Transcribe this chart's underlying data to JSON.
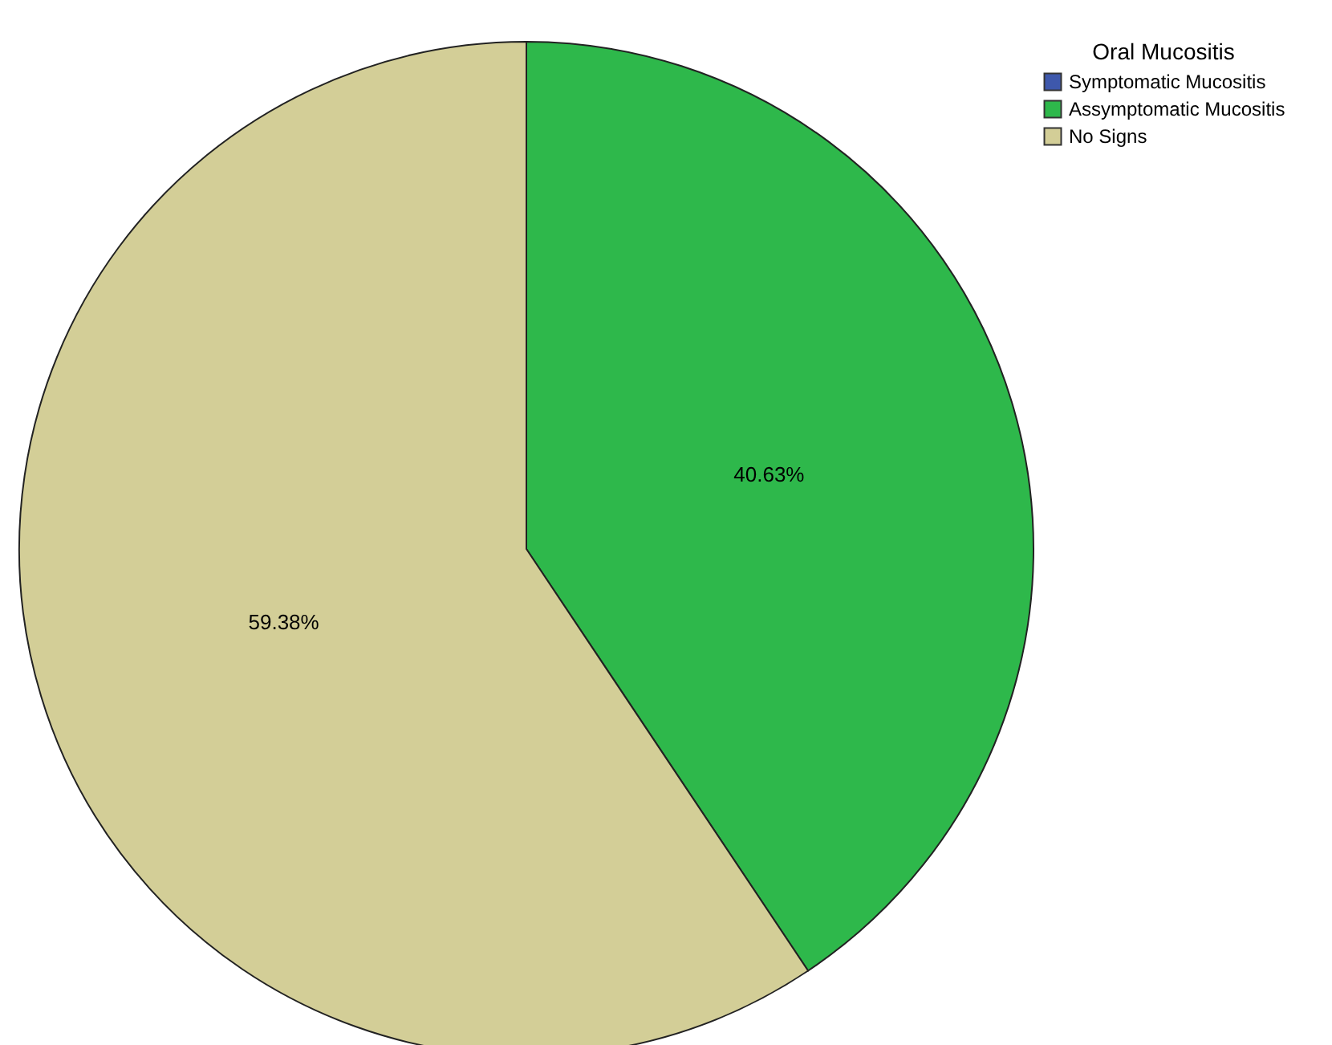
{
  "chart_data": {
    "type": "pie",
    "legend_title": "Oral Mucositis",
    "categories": [
      "Symptomatic Mucositis",
      "Assymptomatic Mucositis",
      "No Signs"
    ],
    "values": [
      0,
      40.63,
      59.38
    ],
    "colors": [
      "#3e58ac",
      "#2eb84b",
      "#d3ce97"
    ],
    "value_labels": [
      null,
      "40.63%",
      "59.38%"
    ],
    "legend": "top right"
  }
}
